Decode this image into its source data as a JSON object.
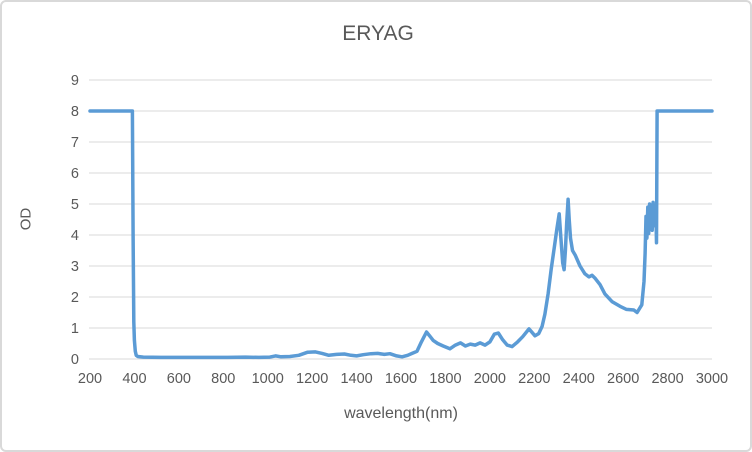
{
  "chart_data": {
    "type": "line",
    "title": "ERYAG",
    "xlabel": "wavelength(nm)",
    "ylabel": "OD",
    "xlim": [
      200,
      3000
    ],
    "ylim": [
      0,
      9
    ],
    "x_ticks": [
      200,
      400,
      600,
      800,
      1000,
      1200,
      1400,
      1600,
      1800,
      2000,
      2200,
      2400,
      2600,
      2800,
      3000
    ],
    "y_ticks": [
      0,
      1,
      2,
      3,
      4,
      5,
      6,
      7,
      8,
      9
    ],
    "grid": "horizontal-only",
    "legend": "none",
    "colors": {
      "line": "#5B9BD5",
      "grid": "#D9D9D9",
      "text": "#595959",
      "border": "#D9D9D9",
      "background": "#FFFFFF"
    },
    "series": [
      {
        "name": "ERYAG",
        "points": [
          [
            200,
            8
          ],
          [
            386,
            8
          ],
          [
            391,
            8
          ],
          [
            394,
            4
          ],
          [
            397,
            1.2
          ],
          [
            400,
            0.6
          ],
          [
            404,
            0.25
          ],
          [
            408,
            0.12
          ],
          [
            415,
            0.08
          ],
          [
            440,
            0.06
          ],
          [
            520,
            0.05
          ],
          [
            620,
            0.05
          ],
          [
            720,
            0.05
          ],
          [
            820,
            0.05
          ],
          [
            900,
            0.06
          ],
          [
            960,
            0.05
          ],
          [
            1010,
            0.06
          ],
          [
            1035,
            0.1
          ],
          [
            1060,
            0.07
          ],
          [
            1100,
            0.08
          ],
          [
            1140,
            0.12
          ],
          [
            1180,
            0.22
          ],
          [
            1215,
            0.23
          ],
          [
            1245,
            0.18
          ],
          [
            1275,
            0.12
          ],
          [
            1310,
            0.15
          ],
          [
            1345,
            0.16
          ],
          [
            1375,
            0.12
          ],
          [
            1400,
            0.1
          ],
          [
            1430,
            0.14
          ],
          [
            1465,
            0.17
          ],
          [
            1495,
            0.18
          ],
          [
            1525,
            0.15
          ],
          [
            1550,
            0.17
          ],
          [
            1580,
            0.1
          ],
          [
            1605,
            0.07
          ],
          [
            1630,
            0.12
          ],
          [
            1650,
            0.18
          ],
          [
            1672,
            0.25
          ],
          [
            1692,
            0.55
          ],
          [
            1715,
            0.87
          ],
          [
            1732,
            0.72
          ],
          [
            1745,
            0.6
          ],
          [
            1765,
            0.5
          ],
          [
            1790,
            0.42
          ],
          [
            1820,
            0.33
          ],
          [
            1845,
            0.45
          ],
          [
            1868,
            0.52
          ],
          [
            1890,
            0.42
          ],
          [
            1912,
            0.48
          ],
          [
            1934,
            0.45
          ],
          [
            1956,
            0.52
          ],
          [
            1978,
            0.45
          ],
          [
            2000,
            0.55
          ],
          [
            2020,
            0.8
          ],
          [
            2038,
            0.84
          ],
          [
            2058,
            0.62
          ],
          [
            2078,
            0.45
          ],
          [
            2100,
            0.4
          ],
          [
            2125,
            0.55
          ],
          [
            2148,
            0.72
          ],
          [
            2176,
            0.97
          ],
          [
            2203,
            0.75
          ],
          [
            2220,
            0.82
          ],
          [
            2235,
            1.05
          ],
          [
            2248,
            1.45
          ],
          [
            2262,
            2.1
          ],
          [
            2276,
            2.9
          ],
          [
            2290,
            3.6
          ],
          [
            2302,
            4.2
          ],
          [
            2312,
            4.68
          ],
          [
            2320,
            3.9
          ],
          [
            2328,
            3.1
          ],
          [
            2334,
            2.88
          ],
          [
            2340,
            3.5
          ],
          [
            2346,
            4.4
          ],
          [
            2352,
            5.15
          ],
          [
            2357,
            4.5
          ],
          [
            2363,
            3.9
          ],
          [
            2372,
            3.5
          ],
          [
            2384,
            3.35
          ],
          [
            2406,
            3.0
          ],
          [
            2428,
            2.75
          ],
          [
            2446,
            2.65
          ],
          [
            2460,
            2.7
          ],
          [
            2474,
            2.6
          ],
          [
            2496,
            2.4
          ],
          [
            2518,
            2.1
          ],
          [
            2550,
            1.85
          ],
          [
            2586,
            1.7
          ],
          [
            2615,
            1.6
          ],
          [
            2648,
            1.58
          ],
          [
            2663,
            1.5
          ],
          [
            2684,
            1.75
          ],
          [
            2694,
            2.5
          ],
          [
            2699,
            3.4
          ],
          [
            2703,
            4.6
          ],
          [
            2707,
            3.9
          ],
          [
            2711,
            4.9
          ],
          [
            2715,
            4.05
          ],
          [
            2719,
            5.0
          ],
          [
            2723,
            4.2
          ],
          [
            2727,
            4.95
          ],
          [
            2731,
            4.15
          ],
          [
            2735,
            5.05
          ],
          [
            2739,
            4.3
          ],
          [
            2743,
            4.85
          ],
          [
            2747,
            4.9
          ],
          [
            2750,
            3.75
          ],
          [
            2753,
            8
          ],
          [
            2770,
            8
          ],
          [
            3000,
            8
          ]
        ]
      }
    ]
  }
}
